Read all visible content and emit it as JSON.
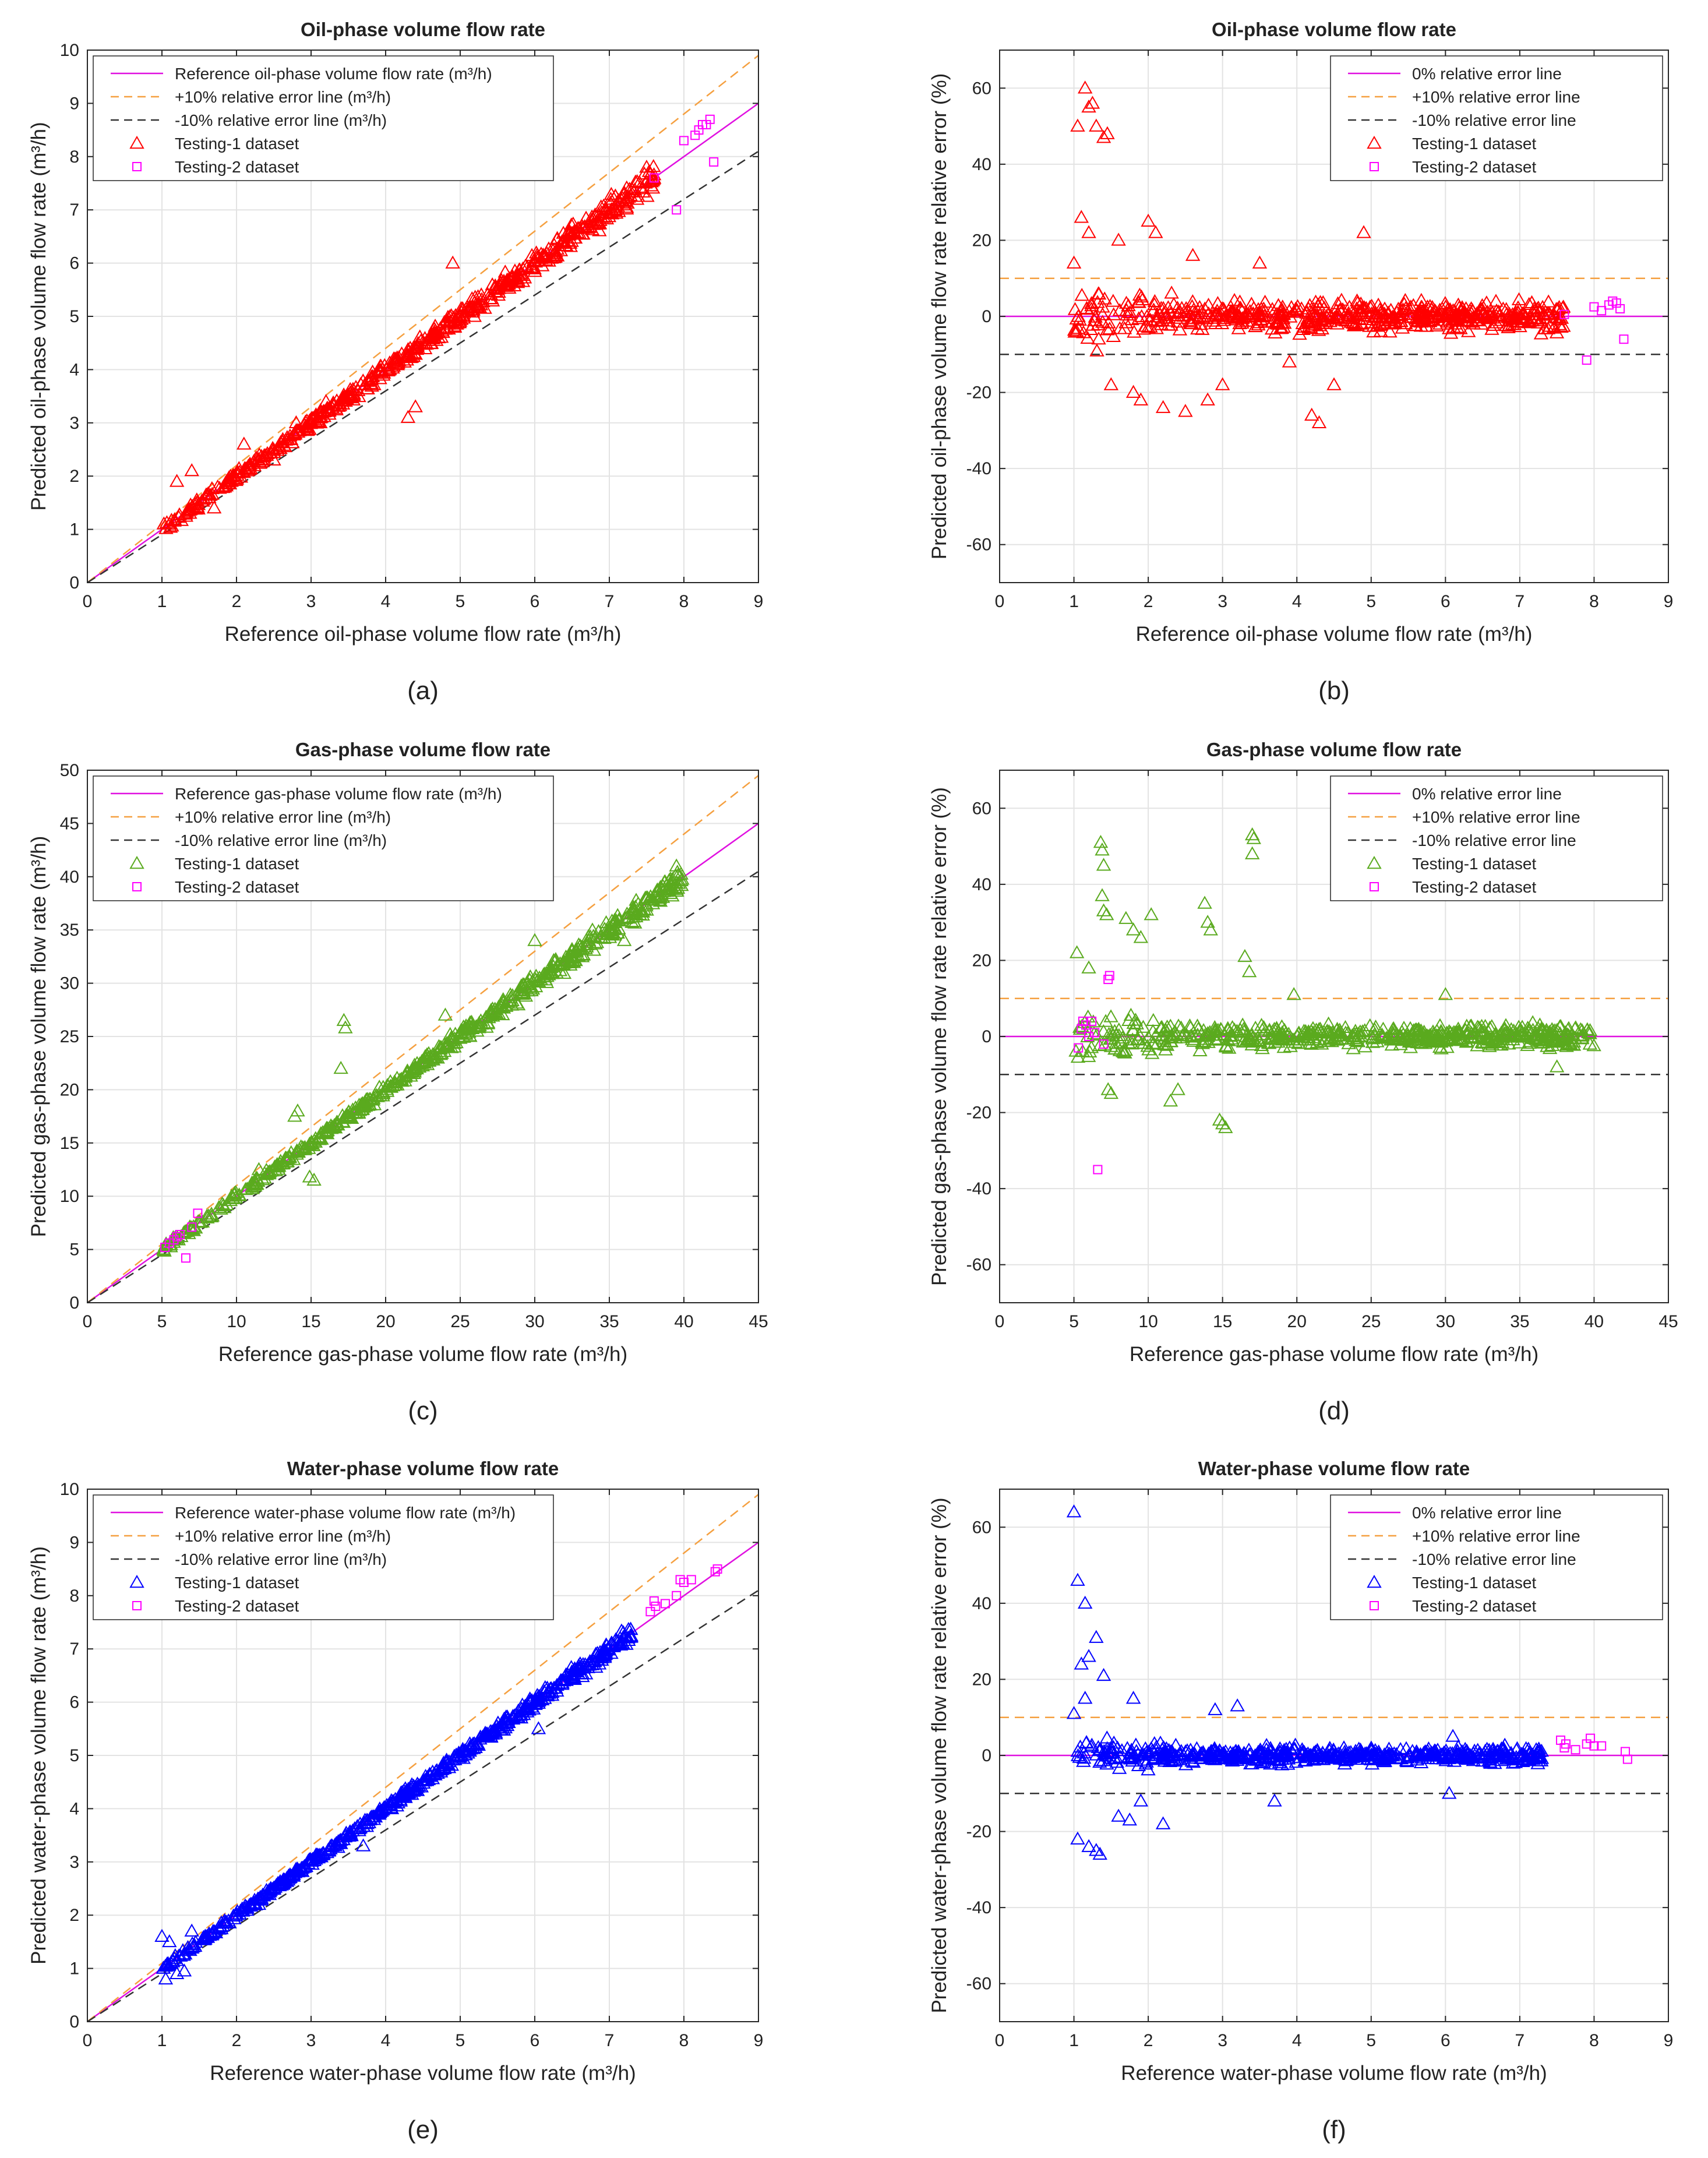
{
  "palette": {
    "ref_line": "#e010e0",
    "plus_line": "#f5a040",
    "minus_line": "#333333",
    "oil": "#ff0000",
    "gas": "#5aaa1e",
    "water": "#0000ff",
    "testing2": "#ff00ff"
  },
  "chart_data": [
    {
      "type": "scatter",
      "variant": "pred_vs_ref",
      "panel_label": "(a)",
      "panel_letter": "a",
      "title": "Oil-phase volume flow rate",
      "xlabel": "Reference oil-phase volume flow rate (m³/h)",
      "ylabel": "Predicted oil-phase volume flow rate (m³/h)",
      "xlim": [
        0,
        9
      ],
      "ylim": [
        0,
        10
      ],
      "xticks": [
        "0",
        "1",
        "2",
        "3",
        "4",
        "5",
        "6",
        "7",
        "8",
        "9"
      ],
      "yticks": [
        "0",
        "1",
        "2",
        "3",
        "4",
        "5",
        "6",
        "7",
        "8",
        "9",
        "10"
      ],
      "grid": true,
      "legend_position": "top-left",
      "legend": [
        "Reference oil-phase volume flow rate (m³/h)",
        "+10% relative error line (m³/h)",
        "-10% relative error line (m³/h)",
        "Testing-1 dataset",
        "Testing-2 dataset"
      ],
      "series": [
        {
          "name": "Testing-1 dataset",
          "marker": "triangle",
          "color_key": "oil",
          "x_range": [
            1.0,
            7.6
          ],
          "spread_pct": 5,
          "outliers": [
            [
              1.2,
              1.9
            ],
            [
              1.4,
              2.1
            ],
            [
              2.1,
              2.6
            ],
            [
              2.8,
              3.0
            ],
            [
              3.2,
              3.4
            ],
            [
              4.3,
              3.1
            ],
            [
              4.9,
              6.0
            ],
            [
              4.4,
              3.3
            ],
            [
              7.5,
              7.8
            ],
            [
              2.5,
              2.3
            ],
            [
              1.7,
              1.4
            ]
          ]
        },
        {
          "name": "Testing-2 dataset",
          "marker": "square",
          "color_key": "testing2",
          "points": [
            [
              7.6,
              7.6
            ],
            [
              8.0,
              8.3
            ],
            [
              8.15,
              8.4
            ],
            [
              8.2,
              8.5
            ],
            [
              8.3,
              8.6
            ],
            [
              8.35,
              8.7
            ],
            [
              7.9,
              7.0
            ],
            [
              8.4,
              7.9
            ],
            [
              8.25,
              8.6
            ]
          ]
        }
      ]
    },
    {
      "type": "scatter",
      "variant": "rel_error",
      "panel_label": "(b)",
      "panel_letter": "b",
      "title": "Oil-phase volume flow rate",
      "xlabel": "Reference oil-phase volume flow rate (m³/h)",
      "ylabel": "Predicted oil-phase volume flow rate relative error (%)",
      "xlim": [
        0,
        9
      ],
      "ylim": [
        -70,
        70
      ],
      "xticks": [
        "0",
        "1",
        "2",
        "3",
        "4",
        "5",
        "6",
        "7",
        "8",
        "9"
      ],
      "yticks": [
        "-60",
        "-40",
        "-20",
        "0",
        "20",
        "40",
        "60"
      ],
      "grid": true,
      "legend_position": "top-right",
      "legend": [
        "0% relative error line",
        "+10% relative error line",
        "-10% relative error line",
        "Testing-1 dataset",
        "Testing-2 dataset"
      ],
      "series": [
        {
          "name": "Testing-1 dataset",
          "marker": "triangle",
          "color_key": "oil",
          "x_range": [
            1.0,
            7.6
          ],
          "spread_pct": 5,
          "outliers": [
            [
              1.05,
              50
            ],
            [
              1.15,
              60
            ],
            [
              1.2,
              55
            ],
            [
              1.3,
              50
            ],
            [
              1.4,
              47
            ],
            [
              1.45,
              48
            ],
            [
              1.25,
              56
            ],
            [
              1.1,
              26
            ],
            [
              1.2,
              22
            ],
            [
              1.6,
              20
            ],
            [
              2.0,
              25
            ],
            [
              2.1,
              22
            ],
            [
              3.5,
              14
            ],
            [
              4.9,
              22
            ],
            [
              4.3,
              -28
            ],
            [
              4.2,
              -26
            ],
            [
              2.5,
              -25
            ],
            [
              2.2,
              -24
            ],
            [
              1.9,
              -22
            ],
            [
              4.5,
              -18
            ],
            [
              1.5,
              -18
            ],
            [
              1.8,
              -20
            ],
            [
              2.8,
              -22
            ],
            [
              3.0,
              -18
            ],
            [
              3.9,
              -12
            ],
            [
              2.6,
              16
            ],
            [
              1.0,
              14
            ]
          ]
        },
        {
          "name": "Testing-2 dataset",
          "marker": "square",
          "color_key": "testing2",
          "points": [
            [
              8.0,
              2.5
            ],
            [
              8.2,
              3.0
            ],
            [
              8.3,
              3.5
            ],
            [
              8.35,
              2.0
            ],
            [
              7.9,
              -11.5
            ],
            [
              8.4,
              -6
            ],
            [
              7.6,
              0.5
            ],
            [
              8.25,
              4.0
            ],
            [
              8.1,
              1.5
            ]
          ]
        }
      ]
    },
    {
      "type": "scatter",
      "variant": "pred_vs_ref",
      "panel_label": "(c)",
      "panel_letter": "c",
      "title": "Gas-phase volume flow rate",
      "xlabel": "Reference gas-phase volume flow rate (m³/h)",
      "ylabel": "Predicted gas-phase volume flow rate (m³/h)",
      "xlim": [
        0,
        45
      ],
      "ylim": [
        0,
        50
      ],
      "xticks": [
        "0",
        "5",
        "10",
        "15",
        "20",
        "25",
        "30",
        "35",
        "40",
        "45"
      ],
      "yticks": [
        "0",
        "5",
        "10",
        "15",
        "20",
        "25",
        "30",
        "35",
        "40",
        "45",
        "50"
      ],
      "grid": true,
      "legend_position": "top-left",
      "legend": [
        "Reference gas-phase volume flow rate (m³/h)",
        "+10% relative error line (m³/h)",
        "-10% relative error line (m³/h)",
        "Testing-1 dataset",
        "Testing-2 dataset"
      ],
      "series": [
        {
          "name": "Testing-1 dataset",
          "marker": "triangle",
          "color_key": "gas",
          "x_range": [
            5,
            40
          ],
          "spread_pct": 4,
          "outliers": [
            [
              17.2,
              26.5
            ],
            [
              17.3,
              25.8
            ],
            [
              14.1,
              18.0
            ],
            [
              13.9,
              17.5
            ],
            [
              15.2,
              11.5
            ],
            [
              14.9,
              11.8
            ],
            [
              11.5,
              12.5
            ],
            [
              17.0,
              22.0
            ],
            [
              24.0,
              27.0
            ],
            [
              30.0,
              34.0
            ],
            [
              39.5,
              41.0
            ],
            [
              36.0,
              34.0
            ]
          ]
        },
        {
          "name": "Testing-2 dataset",
          "marker": "square",
          "color_key": "testing2",
          "points": [
            [
              5.2,
              5.2
            ],
            [
              5.5,
              5.6
            ],
            [
              5.8,
              5.9
            ],
            [
              6.2,
              6.4
            ],
            [
              6.6,
              4.2
            ],
            [
              7.0,
              7.1
            ],
            [
              7.4,
              8.4
            ],
            [
              6.0,
              6.2
            ]
          ]
        }
      ]
    },
    {
      "type": "scatter",
      "variant": "rel_error",
      "panel_label": "(d)",
      "panel_letter": "d",
      "title": "Gas-phase volume flow rate",
      "xlabel": "Reference gas-phase volume flow rate (m³/h)",
      "ylabel": "Predicted gas-phase volume flow rate relative error (%)",
      "xlim": [
        0,
        45
      ],
      "ylim": [
        -70,
        70
      ],
      "xticks": [
        "0",
        "5",
        "10",
        "15",
        "20",
        "25",
        "30",
        "35",
        "40",
        "45"
      ],
      "yticks": [
        "-60",
        "-40",
        "-20",
        "0",
        "20",
        "40",
        "60"
      ],
      "grid": true,
      "legend_position": "top-right",
      "legend": [
        "0% relative error line",
        "+10% relative error line",
        "-10% relative error line",
        "Testing-1 dataset",
        "Testing-2 dataset"
      ],
      "series": [
        {
          "name": "Testing-1 dataset",
          "marker": "triangle",
          "color_key": "gas",
          "x_range": [
            5,
            40
          ],
          "spread_pct": 4,
          "outliers": [
            [
              6.8,
              51
            ],
            [
              6.9,
              49
            ],
            [
              7.0,
              45
            ],
            [
              6.9,
              37
            ],
            [
              7.0,
              33
            ],
            [
              7.2,
              32
            ],
            [
              17.0,
              53
            ],
            [
              17.1,
              52
            ],
            [
              17.0,
              48
            ],
            [
              13.8,
              35
            ],
            [
              14.0,
              30
            ],
            [
              14.2,
              28
            ],
            [
              9.0,
              28
            ],
            [
              10.2,
              32
            ],
            [
              8.5,
              31
            ],
            [
              9.5,
              26
            ],
            [
              16.5,
              21
            ],
            [
              16.8,
              17
            ],
            [
              5.2,
              22
            ],
            [
              6.0,
              18
            ],
            [
              15.0,
              -23
            ],
            [
              15.2,
              -24
            ],
            [
              14.8,
              -22
            ],
            [
              11.5,
              -17
            ],
            [
              12.0,
              -14
            ],
            [
              7.3,
              -14
            ],
            [
              7.5,
              -15
            ],
            [
              19.8,
              11
            ],
            [
              30.0,
              11
            ],
            [
              37.5,
              -8
            ]
          ]
        },
        {
          "name": "Testing-2 dataset",
          "marker": "square",
          "color_key": "testing2",
          "points": [
            [
              5.3,
              -3
            ],
            [
              5.5,
              2
            ],
            [
              5.6,
              4
            ],
            [
              5.8,
              3
            ],
            [
              6.0,
              0
            ],
            [
              6.2,
              4
            ],
            [
              6.4,
              1
            ],
            [
              6.6,
              -35
            ],
            [
              7.0,
              -2
            ],
            [
              7.4,
              16
            ],
            [
              7.3,
              15
            ]
          ]
        }
      ]
    },
    {
      "type": "scatter",
      "variant": "pred_vs_ref",
      "panel_label": "(e)",
      "panel_letter": "e",
      "title": "Water-phase volume flow rate",
      "xlabel": "Reference water-phase volume flow rate (m³/h)",
      "ylabel": "Predicted water-phase volume flow rate (m³/h)",
      "xlim": [
        0,
        9
      ],
      "ylim": [
        0,
        10
      ],
      "xticks": [
        "0",
        "1",
        "2",
        "3",
        "4",
        "5",
        "6",
        "7",
        "8",
        "9"
      ],
      "yticks": [
        "0",
        "1",
        "2",
        "3",
        "4",
        "5",
        "6",
        "7",
        "8",
        "9",
        "10"
      ],
      "grid": true,
      "legend_position": "top-left",
      "legend": [
        "Reference water-phase volume flow rate (m³/h)",
        "+10% relative error line (m³/h)",
        "-10% relative error line (m³/h)",
        "Testing-1 dataset",
        "Testing-2 dataset"
      ],
      "series": [
        {
          "name": "Testing-1 dataset",
          "marker": "triangle",
          "color_key": "water",
          "x_range": [
            1.0,
            7.3
          ],
          "spread_pct": 3,
          "outliers": [
            [
              1.0,
              1.6
            ],
            [
              1.1,
              1.5
            ],
            [
              1.05,
              0.8
            ],
            [
              1.2,
              0.9
            ],
            [
              1.3,
              0.95
            ],
            [
              1.4,
              1.7
            ],
            [
              6.05,
              5.5
            ],
            [
              3.7,
              3.3
            ],
            [
              2.3,
              2.2
            ]
          ]
        },
        {
          "name": "Testing-2 dataset",
          "marker": "square",
          "color_key": "testing2",
          "points": [
            [
              7.55,
              7.7
            ],
            [
              7.6,
              7.9
            ],
            [
              7.62,
              7.8
            ],
            [
              7.75,
              7.85
            ],
            [
              7.9,
              8.0
            ],
            [
              7.95,
              8.3
            ],
            [
              8.0,
              8.25
            ],
            [
              8.1,
              8.3
            ],
            [
              8.42,
              8.45
            ],
            [
              8.45,
              8.5
            ]
          ]
        }
      ]
    },
    {
      "type": "scatter",
      "variant": "rel_error",
      "panel_label": "(f)",
      "panel_letter": "f",
      "title": "Water-phase volume flow rate",
      "xlabel": "Reference water-phase volume flow rate (m³/h)",
      "ylabel": "Predicted water-phase volume flow rate relative error (%)",
      "xlim": [
        0,
        9
      ],
      "ylim": [
        -70,
        70
      ],
      "xticks": [
        "0",
        "1",
        "2",
        "3",
        "4",
        "5",
        "6",
        "7",
        "8",
        "9"
      ],
      "yticks": [
        "-60",
        "-40",
        "-20",
        "0",
        "20",
        "40",
        "60"
      ],
      "grid": true,
      "legend_position": "top-right",
      "legend": [
        "0% relative error line",
        "+10% relative error line",
        "-10% relative error line",
        "Testing-1 dataset",
        "Testing-2 dataset"
      ],
      "series": [
        {
          "name": "Testing-1 dataset",
          "marker": "triangle",
          "color_key": "water",
          "x_range": [
            1.0,
            7.3
          ],
          "spread_pct": 3,
          "outliers": [
            [
              1.0,
              64
            ],
            [
              1.05,
              46
            ],
            [
              1.15,
              40
            ],
            [
              1.3,
              31
            ],
            [
              1.2,
              26
            ],
            [
              1.1,
              24
            ],
            [
              1.4,
              21
            ],
            [
              1.0,
              11
            ],
            [
              1.15,
              15
            ],
            [
              1.05,
              -22
            ],
            [
              1.2,
              -24
            ],
            [
              1.3,
              -25
            ],
            [
              1.35,
              -26
            ],
            [
              1.6,
              -16
            ],
            [
              1.75,
              -17
            ],
            [
              2.2,
              -18
            ],
            [
              1.9,
              -12
            ],
            [
              3.7,
              -12
            ],
            [
              2.9,
              12
            ],
            [
              3.2,
              13
            ],
            [
              1.8,
              15
            ],
            [
              6.05,
              -10
            ],
            [
              6.1,
              5
            ]
          ]
        },
        {
          "name": "Testing-2 dataset",
          "marker": "square",
          "color_key": "testing2",
          "points": [
            [
              7.55,
              4
            ],
            [
              7.6,
              2
            ],
            [
              7.62,
              3
            ],
            [
              7.75,
              1.5
            ],
            [
              7.9,
              3
            ],
            [
              7.95,
              4.5
            ],
            [
              8.0,
              2.5
            ],
            [
              8.1,
              2.5
            ],
            [
              8.42,
              1
            ],
            [
              8.45,
              -1
            ]
          ]
        }
      ]
    }
  ]
}
